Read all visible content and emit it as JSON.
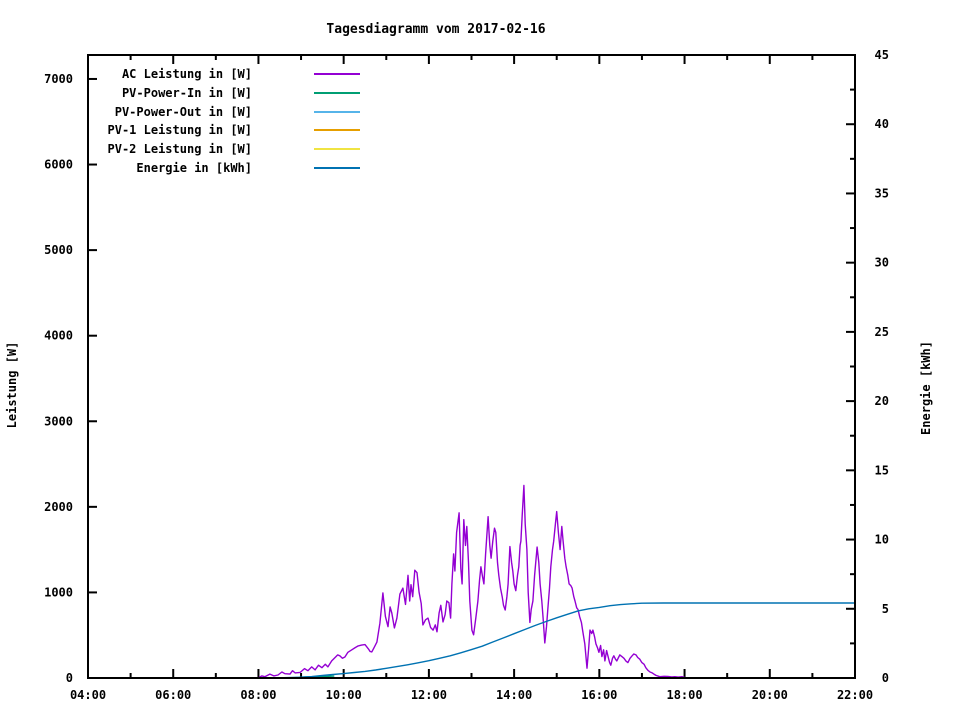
{
  "title": "Tagesdiagramm vom 2017-02-16",
  "chart_data": {
    "type": "line",
    "title": "Tagesdiagramm vom 2017-02-16",
    "xlabel": "",
    "ylabel": "Leistung [W]",
    "y2label": "Energie [kWh]",
    "grid": false,
    "legend_position": "top-left-inside",
    "x_axis": {
      "range": [
        4,
        22
      ],
      "major_ticks": [
        {
          "v": 4,
          "label": "04:00"
        },
        {
          "v": 6,
          "label": "06:00"
        },
        {
          "v": 8,
          "label": "08:00"
        },
        {
          "v": 10,
          "label": "10:00"
        },
        {
          "v": 12,
          "label": "12:00"
        },
        {
          "v": 14,
          "label": "14:00"
        },
        {
          "v": 16,
          "label": "16:00"
        },
        {
          "v": 18,
          "label": "18:00"
        },
        {
          "v": 20,
          "label": "20:00"
        },
        {
          "v": 22,
          "label": "22:00"
        }
      ],
      "minor_ticks": [
        5,
        7,
        9,
        11,
        13,
        15,
        17,
        19,
        21
      ]
    },
    "y_axis": {
      "range": [
        0,
        7280
      ],
      "major_ticks": [
        {
          "v": 0,
          "label": "0"
        },
        {
          "v": 1000,
          "label": "1000"
        },
        {
          "v": 2000,
          "label": "2000"
        },
        {
          "v": 3000,
          "label": "3000"
        },
        {
          "v": 4000,
          "label": "4000"
        },
        {
          "v": 5000,
          "label": "5000"
        },
        {
          "v": 6000,
          "label": "6000"
        },
        {
          "v": 7000,
          "label": "7000"
        }
      ],
      "minor_ticks": []
    },
    "y2_axis": {
      "range": [
        0,
        45
      ],
      "major_ticks": [
        {
          "v": 0,
          "label": "0"
        },
        {
          "v": 5,
          "label": "5"
        },
        {
          "v": 10,
          "label": "10"
        },
        {
          "v": 15,
          "label": "15"
        },
        {
          "v": 20,
          "label": "20"
        },
        {
          "v": 25,
          "label": "25"
        },
        {
          "v": 30,
          "label": "30"
        },
        {
          "v": 35,
          "label": "35"
        },
        {
          "v": 40,
          "label": "40"
        },
        {
          "v": 45,
          "label": "45"
        }
      ],
      "minor_ticks": [
        2.5,
        7.5,
        12.5,
        17.5,
        22.5,
        27.5,
        32.5,
        37.5,
        42.5
      ]
    },
    "colors": {
      "ac": "#9400d3",
      "pv_power_in": "#009e73",
      "pv_power_out": "#56b4e9",
      "pv1": "#e69f00",
      "pv2": "#f0e442",
      "energie": "#0072b2"
    },
    "series": [
      {
        "name": "AC Leistung in [W]",
        "color": "#9400d3",
        "axis": "left",
        "points": [
          [
            7.99,
            0
          ],
          [
            8.08,
            25
          ],
          [
            8.15,
            15
          ],
          [
            8.27,
            45
          ],
          [
            8.36,
            25
          ],
          [
            8.46,
            35
          ],
          [
            8.55,
            70
          ],
          [
            8.62,
            50
          ],
          [
            8.74,
            45
          ],
          [
            8.8,
            85
          ],
          [
            8.86,
            60
          ],
          [
            8.98,
            65
          ],
          [
            9.08,
            110
          ],
          [
            9.16,
            85
          ],
          [
            9.25,
            130
          ],
          [
            9.33,
            95
          ],
          [
            9.41,
            150
          ],
          [
            9.49,
            120
          ],
          [
            9.57,
            160
          ],
          [
            9.63,
            130
          ],
          [
            9.72,
            200
          ],
          [
            9.8,
            240
          ],
          [
            9.86,
            270
          ],
          [
            9.91,
            260
          ],
          [
            9.97,
            230
          ],
          [
            10.03,
            245
          ],
          [
            10.1,
            300
          ],
          [
            10.19,
            330
          ],
          [
            10.27,
            355
          ],
          [
            10.34,
            375
          ],
          [
            10.42,
            385
          ],
          [
            10.5,
            390
          ],
          [
            10.58,
            340
          ],
          [
            10.62,
            310
          ],
          [
            10.66,
            305
          ],
          [
            10.72,
            360
          ],
          [
            10.78,
            420
          ],
          [
            10.85,
            640
          ],
          [
            10.92,
            995
          ],
          [
            10.98,
            720
          ],
          [
            11.04,
            600
          ],
          [
            11.09,
            830
          ],
          [
            11.13,
            760
          ],
          [
            11.19,
            585
          ],
          [
            11.25,
            700
          ],
          [
            11.32,
            980
          ],
          [
            11.39,
            1050
          ],
          [
            11.45,
            860
          ],
          [
            11.51,
            1200
          ],
          [
            11.55,
            900
          ],
          [
            11.58,
            1090
          ],
          [
            11.62,
            950
          ],
          [
            11.67,
            1260
          ],
          [
            11.72,
            1230
          ],
          [
            11.77,
            1000
          ],
          [
            11.82,
            870
          ],
          [
            11.86,
            620
          ],
          [
            11.92,
            680
          ],
          [
            11.98,
            700
          ],
          [
            12.04,
            590
          ],
          [
            12.1,
            560
          ],
          [
            12.15,
            620
          ],
          [
            12.19,
            540
          ],
          [
            12.24,
            760
          ],
          [
            12.28,
            850
          ],
          [
            12.33,
            655
          ],
          [
            12.38,
            740
          ],
          [
            12.42,
            900
          ],
          [
            12.47,
            880
          ],
          [
            12.51,
            700
          ],
          [
            12.54,
            1100
          ],
          [
            12.58,
            1450
          ],
          [
            12.61,
            1250
          ],
          [
            12.65,
            1700
          ],
          [
            12.71,
            1930
          ],
          [
            12.75,
            1280
          ],
          [
            12.78,
            1100
          ],
          [
            12.82,
            1850
          ],
          [
            12.86,
            1550
          ],
          [
            12.89,
            1770
          ],
          [
            12.93,
            1350
          ],
          [
            12.96,
            900
          ],
          [
            13.01,
            560
          ],
          [
            13.05,
            505
          ],
          [
            13.1,
            700
          ],
          [
            13.15,
            900
          ],
          [
            13.19,
            1150
          ],
          [
            13.22,
            1300
          ],
          [
            13.26,
            1180
          ],
          [
            13.29,
            1100
          ],
          [
            13.33,
            1450
          ],
          [
            13.39,
            1885
          ],
          [
            13.43,
            1550
          ],
          [
            13.46,
            1400
          ],
          [
            13.5,
            1600
          ],
          [
            13.54,
            1750
          ],
          [
            13.57,
            1700
          ],
          [
            13.61,
            1350
          ],
          [
            13.64,
            1200
          ],
          [
            13.68,
            1050
          ],
          [
            13.72,
            950
          ],
          [
            13.75,
            850
          ],
          [
            13.79,
            795
          ],
          [
            13.83,
            950
          ],
          [
            13.86,
            1100
          ],
          [
            13.9,
            1535
          ],
          [
            13.94,
            1350
          ],
          [
            13.97,
            1250
          ],
          [
            14.0,
            1100
          ],
          [
            14.04,
            1020
          ],
          [
            14.08,
            1200
          ],
          [
            14.11,
            1300
          ],
          [
            14.14,
            1550
          ],
          [
            14.16,
            1600
          ],
          [
            14.19,
            1900
          ],
          [
            14.23,
            2250
          ],
          [
            14.26,
            1800
          ],
          [
            14.3,
            1500
          ],
          [
            14.33,
            1000
          ],
          [
            14.37,
            650
          ],
          [
            14.4,
            800
          ],
          [
            14.44,
            900
          ],
          [
            14.48,
            1200
          ],
          [
            14.54,
            1530
          ],
          [
            14.58,
            1350
          ],
          [
            14.61,
            1100
          ],
          [
            14.65,
            900
          ],
          [
            14.68,
            700
          ],
          [
            14.72,
            410
          ],
          [
            14.76,
            600
          ],
          [
            14.79,
            800
          ],
          [
            14.83,
            1050
          ],
          [
            14.86,
            1300
          ],
          [
            14.9,
            1500
          ],
          [
            14.93,
            1600
          ],
          [
            14.97,
            1800
          ],
          [
            15.0,
            1945
          ],
          [
            15.04,
            1700
          ],
          [
            15.08,
            1500
          ],
          [
            15.12,
            1770
          ],
          [
            15.15,
            1600
          ],
          [
            15.19,
            1400
          ],
          [
            15.22,
            1300
          ],
          [
            15.26,
            1200
          ],
          [
            15.29,
            1100
          ],
          [
            15.33,
            1080
          ],
          [
            15.36,
            1050
          ],
          [
            15.4,
            950
          ],
          [
            15.43,
            900
          ],
          [
            15.47,
            820
          ],
          [
            15.5,
            800
          ],
          [
            15.54,
            715
          ],
          [
            15.58,
            650
          ],
          [
            15.61,
            550
          ],
          [
            15.66,
            400
          ],
          [
            15.71,
            115
          ],
          [
            15.75,
            350
          ],
          [
            15.78,
            560
          ],
          [
            15.82,
            520
          ],
          [
            15.85,
            560
          ],
          [
            15.89,
            480
          ],
          [
            15.92,
            400
          ],
          [
            15.96,
            350
          ],
          [
            15.99,
            300
          ],
          [
            16.03,
            380
          ],
          [
            16.06,
            250
          ],
          [
            16.1,
            330
          ],
          [
            16.13,
            200
          ],
          [
            16.17,
            320
          ],
          [
            16.2,
            260
          ],
          [
            16.24,
            180
          ],
          [
            16.27,
            150
          ],
          [
            16.31,
            230
          ],
          [
            16.34,
            260
          ],
          [
            16.38,
            220
          ],
          [
            16.41,
            200
          ],
          [
            16.45,
            240
          ],
          [
            16.48,
            270
          ],
          [
            16.53,
            250
          ],
          [
            16.58,
            230
          ],
          [
            16.62,
            200
          ],
          [
            16.67,
            180
          ],
          [
            16.72,
            230
          ],
          [
            16.77,
            260
          ],
          [
            16.81,
            280
          ],
          [
            16.86,
            270
          ],
          [
            16.9,
            240
          ],
          [
            16.95,
            220
          ],
          [
            17.0,
            180
          ],
          [
            17.05,
            160
          ],
          [
            17.09,
            120
          ],
          [
            17.14,
            90
          ],
          [
            17.19,
            70
          ],
          [
            17.24,
            60
          ],
          [
            17.28,
            45
          ],
          [
            17.33,
            30
          ],
          [
            17.42,
            15
          ],
          [
            17.52,
            20
          ],
          [
            17.61,
            18
          ],
          [
            17.7,
            12
          ],
          [
            17.77,
            15
          ],
          [
            17.85,
            10
          ],
          [
            17.94,
            15
          ],
          [
            18.01,
            5
          ]
        ]
      },
      {
        "name": "PV-Power-In in [W]",
        "color": "#009e73",
        "axis": "left",
        "points": [
          [
            8.95,
            8
          ],
          [
            9.1,
            12
          ],
          [
            9.3,
            15
          ],
          [
            9.5,
            18
          ],
          [
            9.78,
            22
          ]
        ]
      },
      {
        "name": "PV-Power-Out in [W]",
        "color": "#56b4e9",
        "axis": "left",
        "points": []
      },
      {
        "name": "PV-1 Leistung in [W]",
        "color": "#e69f00",
        "axis": "left",
        "points": []
      },
      {
        "name": "PV-2 Leistung in [W]",
        "color": "#f0e442",
        "axis": "left",
        "points": []
      },
      {
        "name": "Energie in [kWh]",
        "color": "#0072b2",
        "axis": "right",
        "points": [
          [
            8.4,
            0.0
          ],
          [
            9.0,
            0.06
          ],
          [
            9.25,
            0.1
          ],
          [
            9.5,
            0.18
          ],
          [
            9.75,
            0.25
          ],
          [
            10.0,
            0.32
          ],
          [
            10.25,
            0.4
          ],
          [
            10.5,
            0.48
          ],
          [
            10.75,
            0.58
          ],
          [
            11.0,
            0.7
          ],
          [
            11.25,
            0.82
          ],
          [
            11.5,
            0.95
          ],
          [
            11.75,
            1.1
          ],
          [
            12.0,
            1.25
          ],
          [
            12.25,
            1.42
          ],
          [
            12.5,
            1.6
          ],
          [
            12.75,
            1.82
          ],
          [
            13.0,
            2.05
          ],
          [
            13.25,
            2.3
          ],
          [
            13.5,
            2.6
          ],
          [
            13.75,
            2.9
          ],
          [
            14.0,
            3.2
          ],
          [
            14.25,
            3.5
          ],
          [
            14.5,
            3.8
          ],
          [
            14.75,
            4.08
          ],
          [
            15.0,
            4.35
          ],
          [
            15.25,
            4.6
          ],
          [
            15.5,
            4.85
          ],
          [
            15.75,
            5.0
          ],
          [
            16.0,
            5.1
          ],
          [
            16.25,
            5.22
          ],
          [
            16.5,
            5.3
          ],
          [
            16.75,
            5.36
          ],
          [
            17.0,
            5.4
          ],
          [
            17.5,
            5.42
          ],
          [
            18.0,
            5.42
          ],
          [
            19.0,
            5.42
          ],
          [
            20.0,
            5.42
          ],
          [
            21.0,
            5.42
          ],
          [
            22.0,
            5.42
          ]
        ]
      }
    ]
  }
}
